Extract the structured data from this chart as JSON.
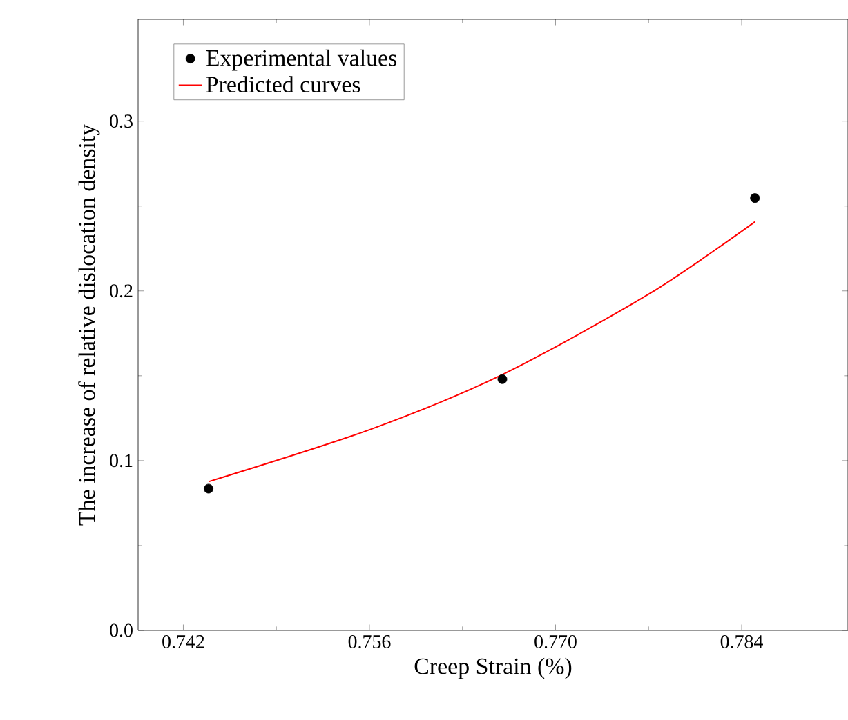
{
  "chart_data": {
    "type": "scatter",
    "xlabel": "Creep Strain (%)",
    "ylabel": "The increase of relative dislocation density",
    "series": [
      {
        "name": "Experimental values",
        "color": "#000000",
        "marker": "circle",
        "x": [
          0.7439,
          0.766,
          0.785
        ],
        "values": [
          0.0835,
          0.148,
          0.2547
        ]
      },
      {
        "name": "Predicted curves",
        "type": "line",
        "color": "#ff0000",
        "marker": "none",
        "line_style": "solid",
        "x": [
          0.7439,
          0.756,
          0.766,
          0.7771,
          0.785
        ],
        "values": [
          0.0876,
          0.1182,
          0.1507,
          0.1985,
          0.2407
        ]
      }
    ],
    "xlim": [
      0.7386,
      0.792
    ],
    "ylim": [
      0,
      0.36
    ],
    "xticks": [
      0.742,
      0.756,
      {
        "value": 0.77,
        "label": "0.770"
      },
      0.784
    ],
    "yticks": [
      {
        "value": 0,
        "label": "0.0"
      },
      0.1,
      0.2,
      0.3
    ],
    "grid": false,
    "legend": "top left"
  }
}
